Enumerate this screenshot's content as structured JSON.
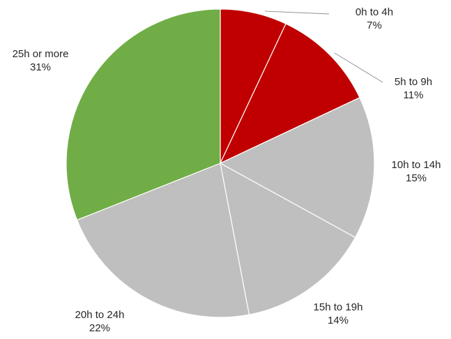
{
  "chart_data": {
    "type": "pie",
    "title": "",
    "start_angle_deg": 0,
    "direction": "clockwise",
    "slices": [
      {
        "label": "0h to 4h",
        "value": 7,
        "value_label": "7%",
        "color": "#c00000"
      },
      {
        "label": "5h to 9h",
        "value": 11,
        "value_label": "11%",
        "color": "#c00000"
      },
      {
        "label": "10h to 14h",
        "value": 15,
        "value_label": "15%",
        "color": "#bfbfbf"
      },
      {
        "label": "15h to 19h",
        "value": 14,
        "value_label": "14%",
        "color": "#bfbfbf"
      },
      {
        "label": "20h to 24h",
        "value": 22,
        "value_label": "22%",
        "color": "#bfbfbf"
      },
      {
        "label": "25h or more",
        "value": 31,
        "value_label": "31%",
        "color": "#70ad47"
      }
    ],
    "legend": "none",
    "slice_border_color": "#ffffff"
  }
}
